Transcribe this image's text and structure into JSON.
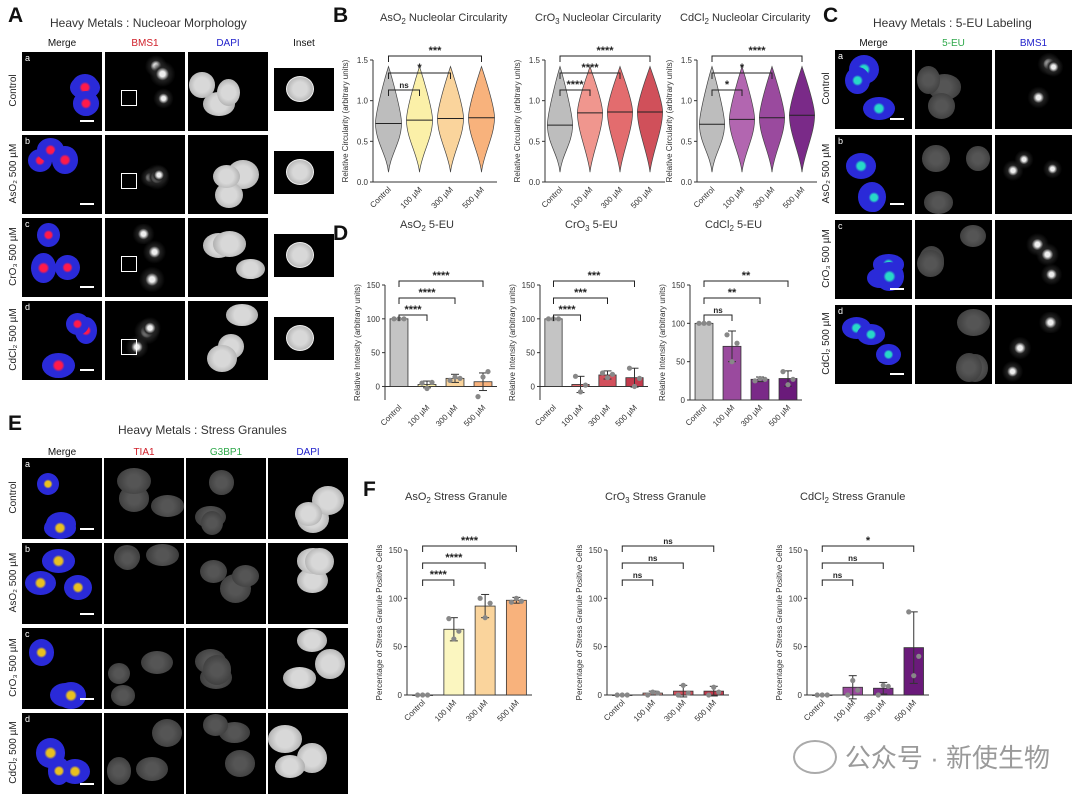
{
  "panelA": {
    "letter": "A",
    "title": "Heavy Metals : Nucleoar Morphology",
    "cols": [
      "Merge",
      "BMS1",
      "DAPI",
      "Inset"
    ],
    "rows": [
      {
        "sub": "a",
        "label": "Control"
      },
      {
        "sub": "b",
        "label": "AsO₂ 500 µM"
      },
      {
        "sub": "c",
        "label": "CrO₃ 500 µM"
      },
      {
        "sub": "d",
        "label": "CdCl₂ 500 µM"
      }
    ]
  },
  "panelC": {
    "letter": "C",
    "title": "Heavy Metals : 5-EU Labeling",
    "cols": [
      "Merge",
      "5-EU",
      "BMS1"
    ],
    "rows": [
      {
        "sub": "a",
        "label": "Control"
      },
      {
        "sub": "b",
        "label": "AsO₂ 500 µM"
      },
      {
        "sub": "c",
        "label": "CrO₃ 500 µM"
      },
      {
        "sub": "d",
        "label": "CdCl₂ 500 µM"
      }
    ]
  },
  "panelE": {
    "letter": "E",
    "title": "Heavy Metals : Stress Granules",
    "cols": [
      "Merge",
      "TIA1",
      "G3BP1",
      "DAPI"
    ],
    "rows": [
      {
        "sub": "a",
        "label": "Control"
      },
      {
        "sub": "b",
        "label": "AsO₂ 500 µM"
      },
      {
        "sub": "c",
        "label": "CrO₃ 500 µM"
      },
      {
        "sub": "d",
        "label": "CdCl₂ 500 µM"
      }
    ]
  },
  "letters": {
    "B": "B",
    "D": "D",
    "F": "F"
  },
  "colors": {
    "merge_red": "#ff1a4a",
    "merge_blue": "#2a2ad8",
    "cyan": "#27d8c8",
    "col_red": "#d0202a",
    "col_blue": "#2222cc",
    "col_green": "#2ea84a"
  },
  "chart_data": [
    {
      "id": "B1",
      "type": "violin",
      "title_pre": "AsO",
      "title_sub": "2",
      "title_post": "  Nucleolar Circularity",
      "ylabel": "Relative Circularity (arbitrary units)",
      "ylim": [
        0,
        1.5
      ],
      "yticks": [
        "0.0",
        "0.5",
        "1.0",
        "1.5"
      ],
      "categories": [
        "Control",
        "100 µM",
        "300 µM",
        "500 µM"
      ],
      "medians": [
        0.72,
        0.76,
        0.78,
        0.79
      ],
      "colors": [
        "#bdbdbd",
        "#fbf0a8",
        "#fad49c",
        "#f8b27c"
      ],
      "sig": [
        "ns",
        "*",
        "***"
      ]
    },
    {
      "id": "B2",
      "type": "violin",
      "title_pre": "CrO",
      "title_sub": "3",
      "title_post": "  Nucleolar Circularity",
      "ylabel": "Relative Circularity (arbitrary units)",
      "ylim": [
        0,
        1.5
      ],
      "yticks": [
        "0.0",
        "0.5",
        "1.0",
        "1.5"
      ],
      "categories": [
        "Control",
        "100 µM",
        "300 µM",
        "500 µM"
      ],
      "medians": [
        0.7,
        0.85,
        0.86,
        0.86
      ],
      "colors": [
        "#bdbdbd",
        "#f0968e",
        "#e36c6e",
        "#d0505a"
      ],
      "sig": [
        "****",
        "****",
        "****"
      ]
    },
    {
      "id": "B3",
      "type": "violin",
      "title_pre": "CdCl",
      "title_sub": "2",
      "title_post": "  Nucleolar Circularity",
      "ylabel": "Relative Circularity (arbitrary units)",
      "ylim": [
        0,
        1.5
      ],
      "yticks": [
        "0.0",
        "0.5",
        "1.0",
        "1.5"
      ],
      "categories": [
        "Control",
        "100 µM",
        "300 µM",
        "500 µM"
      ],
      "medians": [
        0.71,
        0.77,
        0.79,
        0.82
      ],
      "colors": [
        "#bdbdbd",
        "#b266b0",
        "#9a4a9e",
        "#7a2a88"
      ],
      "sig": [
        "*",
        "*",
        "****"
      ]
    },
    {
      "id": "D1",
      "type": "bar",
      "title_pre": "AsO",
      "title_sub": "2",
      "title_post": "  5-EU",
      "ylabel": "Relative Intensity (arbitrary units)",
      "ylim": [
        -20,
        150
      ],
      "yticks": [
        "0",
        "50",
        "100",
        "150"
      ],
      "categories": [
        "Control",
        "100 µM",
        "300 µM",
        "500 µM"
      ],
      "values": [
        100,
        3,
        12,
        7
      ],
      "err": [
        0,
        5,
        6,
        13
      ],
      "points": [
        [
          100,
          100,
          100
        ],
        [
          5,
          -3,
          6
        ],
        [
          9,
          14,
          12
        ],
        [
          -15,
          14,
          22
        ]
      ],
      "colors": [
        "#c4c4c4",
        "#fbf0a8",
        "#fad49c",
        "#f8b27c"
      ],
      "sig": [
        "****",
        "****",
        "****"
      ]
    },
    {
      "id": "D2",
      "type": "bar",
      "title_pre": "CrO",
      "title_sub": "3",
      "title_post": "  5-EU",
      "ylabel": "Relative Intensity (arbitrary units)",
      "ylim": [
        -20,
        150
      ],
      "yticks": [
        "0",
        "50",
        "100",
        "150"
      ],
      "categories": [
        "Control",
        "100 µM",
        "300 µM",
        "500 µM"
      ],
      "values": [
        100,
        3,
        17,
        13
      ],
      "err": [
        0,
        12,
        6,
        14
      ],
      "points": [
        [
          100,
          100,
          100
        ],
        [
          15,
          -8,
          2
        ],
        [
          20,
          13,
          18
        ],
        [
          27,
          0,
          12
        ]
      ],
      "colors": [
        "#c4c4c4",
        "#e36c6e",
        "#d2505c",
        "#c23a4c"
      ],
      "sig": [
        "****",
        "***",
        "***"
      ]
    },
    {
      "id": "D3",
      "type": "bar",
      "title_pre": "CdCl",
      "title_sub": "2",
      "title_post": "  5-EU",
      "ylabel": "Relative Intensity (arbitrary units)",
      "ylim": [
        0,
        150
      ],
      "yticks": [
        "0",
        "50",
        "100",
        "150"
      ],
      "categories": [
        "Control",
        "100 µM",
        "300 µM",
        "500 µM"
      ],
      "values": [
        100,
        70,
        27,
        28
      ],
      "err": [
        0,
        20,
        3,
        10
      ],
      "points": [
        [
          100,
          100,
          100
        ],
        [
          85,
          50,
          74
        ],
        [
          25,
          28,
          27
        ],
        [
          37,
          20,
          27
        ]
      ],
      "colors": [
        "#c4c4c4",
        "#9a4a9e",
        "#7a2a88",
        "#6a1a7a"
      ],
      "sig": [
        "ns",
        "**",
        "**"
      ]
    },
    {
      "id": "F1",
      "type": "bar",
      "title_pre": "AsO",
      "title_sub": "2",
      "title_post": "  Stress Granule",
      "ylabel": "Percentage of Stress Granule Positive Cells",
      "ylim": [
        0,
        150
      ],
      "yticks": [
        "0",
        "50",
        "100",
        "150"
      ],
      "categories": [
        "Control",
        "100 µM",
        "300 µM",
        "500 µM"
      ],
      "values": [
        0,
        68,
        92,
        98
      ],
      "err": [
        0,
        12,
        12,
        3
      ],
      "points": [
        [
          0,
          0,
          0
        ],
        [
          79,
          58,
          66
        ],
        [
          100,
          80,
          95
        ],
        [
          96,
          100,
          97
        ]
      ],
      "colors": [
        "#ffffff",
        "#fbf6c0",
        "#fad49c",
        "#f8b27c"
      ],
      "sig": [
        "****",
        "****",
        "****"
      ]
    },
    {
      "id": "F2",
      "type": "bar",
      "title_pre": "CrO",
      "title_sub": "3",
      "title_post": "  Stress Granule",
      "ylabel": "Percentage of Stress Granule Positive Cells",
      "ylim": [
        0,
        150
      ],
      "yticks": [
        "0",
        "50",
        "100",
        "150"
      ],
      "categories": [
        "Control",
        "100 µM",
        "300 µM",
        "500 µM"
      ],
      "values": [
        0,
        2,
        4,
        4
      ],
      "err": [
        0,
        2,
        6,
        5
      ],
      "points": [
        [
          0,
          0,
          0
        ],
        [
          0,
          3,
          2
        ],
        [
          0,
          10,
          2
        ],
        [
          0,
          8,
          3
        ]
      ],
      "colors": [
        "#ffffff",
        "#f0968e",
        "#d2505c",
        "#c23a4c"
      ],
      "sig": [
        "ns",
        "ns",
        "ns"
      ]
    },
    {
      "id": "F3",
      "type": "bar",
      "title_pre": "CdCl",
      "title_sub": "2",
      "title_post": "  Stress Granule",
      "ylabel": "Percentage of Stress Granule Positive Cells",
      "ylim": [
        0,
        150
      ],
      "yticks": [
        "0",
        "50",
        "100",
        "150"
      ],
      "categories": [
        "Control",
        "100 µM",
        "300 µM",
        "500 µM"
      ],
      "values": [
        0,
        8,
        7,
        49
      ],
      "err": [
        0,
        12,
        6,
        37
      ],
      "points": [
        [
          0,
          0,
          0
        ],
        [
          0,
          15,
          5
        ],
        [
          0,
          10,
          9
        ],
        [
          86,
          20,
          40
        ]
      ],
      "colors": [
        "#ffffff",
        "#9a4a9e",
        "#7a2a88",
        "#6a1a7a"
      ],
      "sig": [
        "ns",
        "ns",
        "*"
      ]
    }
  ],
  "watermark": "公众号 · 新使生物"
}
